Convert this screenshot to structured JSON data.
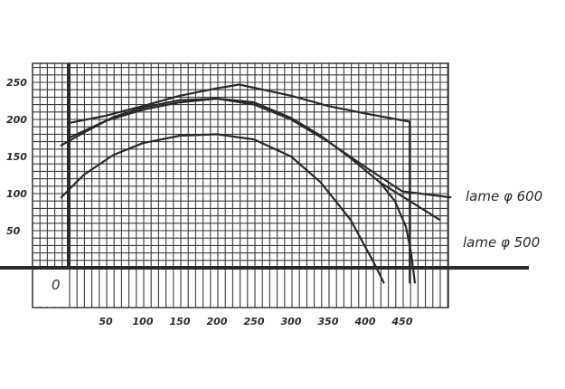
{
  "chart_data": {
    "type": "line",
    "title": "",
    "xlabel": "",
    "ylabel": "",
    "xlim": [
      -40,
      505
    ],
    "ylim": [
      -55,
      282
    ],
    "grid": true,
    "x_ticks": [
      "50",
      "100",
      "150",
      "200",
      "250",
      "300",
      "350",
      "400",
      "450"
    ],
    "y_ticks": [
      "250",
      "200",
      "150",
      "100",
      "50"
    ],
    "origin_label": "0",
    "annotations": [
      {
        "text": "lame φ 600",
        "series_index": 1
      },
      {
        "text": "lame φ 500",
        "series_index": 2
      }
    ],
    "series": [
      {
        "x": [
          0,
          50,
          100,
          150,
          200,
          230,
          300,
          350,
          400,
          460,
          460
        ],
        "y": [
          195,
          205,
          218,
          232,
          242,
          247,
          232,
          218,
          208,
          197,
          -20
        ]
      },
      {
        "x": [
          -10,
          20,
          60,
          100,
          150,
          200,
          250,
          300,
          350,
          400,
          450,
          515
        ],
        "y": [
          165,
          182,
          203,
          216,
          226,
          228,
          220,
          200,
          170,
          136,
          103,
          95
        ]
      },
      {
        "x": [
          0,
          50,
          100,
          150,
          200,
          250,
          300,
          340,
          380,
          420,
          500
        ],
        "y": [
          175,
          198,
          213,
          223,
          228,
          223,
          202,
          178,
          148,
          115,
          65
        ]
      },
      {
        "x": [
          420,
          440,
          455,
          462,
          467
        ],
        "y": [
          115,
          90,
          55,
          20,
          -20
        ]
      },
      {
        "x": [
          -10,
          20,
          60,
          100,
          150,
          200,
          250,
          300,
          340,
          380,
          410,
          425
        ],
        "y": [
          95,
          125,
          152,
          168,
          178,
          180,
          173,
          150,
          115,
          65,
          10,
          -20
        ]
      }
    ]
  }
}
